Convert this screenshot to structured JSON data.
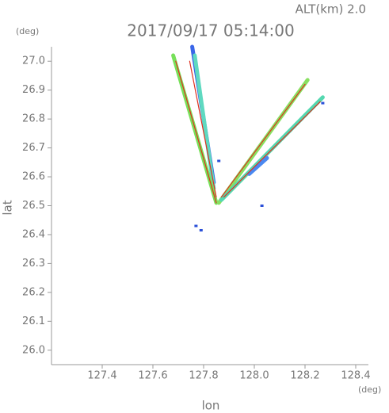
{
  "chart_data": {
    "type": "radar-map",
    "title": "2017/09/17 05:14:00",
    "subtitle": "ALT(km) 2.0",
    "x_unit": "(deg)",
    "y_unit": "(deg)",
    "x_label": "lon",
    "y_label": "lat",
    "xlim": [
      127.2,
      128.45
    ],
    "ylim": [
      25.95,
      27.05
    ],
    "xticks": [
      127.4,
      127.6,
      127.8,
      {
        "value": 128.0,
        "label": "128.0"
      },
      128.2,
      128.4
    ],
    "yticks": [
      {
        "value": 26.0,
        "label": "26.0"
      },
      26.1,
      26.2,
      26.3,
      26.4,
      26.5,
      26.6,
      26.7,
      26.8,
      26.9,
      {
        "value": 27.0,
        "label": "27.0"
      }
    ],
    "series": [
      {
        "style": "beam",
        "color": "#3a66e8",
        "x": [
          127.84,
          127.755
        ],
        "y": [
          26.58,
          27.05
        ]
      },
      {
        "style": "beam",
        "color": "#5fd9c0",
        "x": [
          127.84,
          127.765
        ],
        "y": [
          26.56,
          27.02
        ]
      },
      {
        "style": "beam",
        "color": "#77e05a",
        "x": [
          127.85,
          127.68
        ],
        "y": [
          26.51,
          27.02
        ]
      },
      {
        "style": "beam",
        "color": "#88e060",
        "x": [
          127.86,
          128.21
        ],
        "y": [
          26.51,
          26.935
        ]
      },
      {
        "style": "beam",
        "color": "#55d8b0",
        "x": [
          127.87,
          128.27
        ],
        "y": [
          26.52,
          26.875
        ]
      },
      {
        "style": "beam",
        "color": "#4a88f0",
        "x": [
          127.98,
          128.05
        ],
        "y": [
          26.61,
          26.665
        ]
      },
      {
        "style": "core",
        "color": "#e03020",
        "x": [
          127.85,
          127.69
        ],
        "y": [
          26.51,
          27.0
        ]
      },
      {
        "style": "core",
        "color": "#e03020",
        "x": [
          127.85,
          127.745
        ],
        "y": [
          26.53,
          27.0
        ]
      },
      {
        "style": "core",
        "color": "#e03020",
        "x": [
          127.87,
          128.2
        ],
        "y": [
          26.53,
          26.92
        ]
      },
      {
        "style": "core",
        "color": "#e03020",
        "x": [
          127.88,
          128.26
        ],
        "y": [
          26.53,
          26.86
        ]
      },
      {
        "style": "dot",
        "color": "#2a4fd8",
        "x": [
          127.77,
          127.79,
          127.86,
          128.03,
          128.27
        ],
        "y": [
          26.43,
          26.415,
          26.655,
          26.5,
          26.855
        ]
      }
    ]
  }
}
